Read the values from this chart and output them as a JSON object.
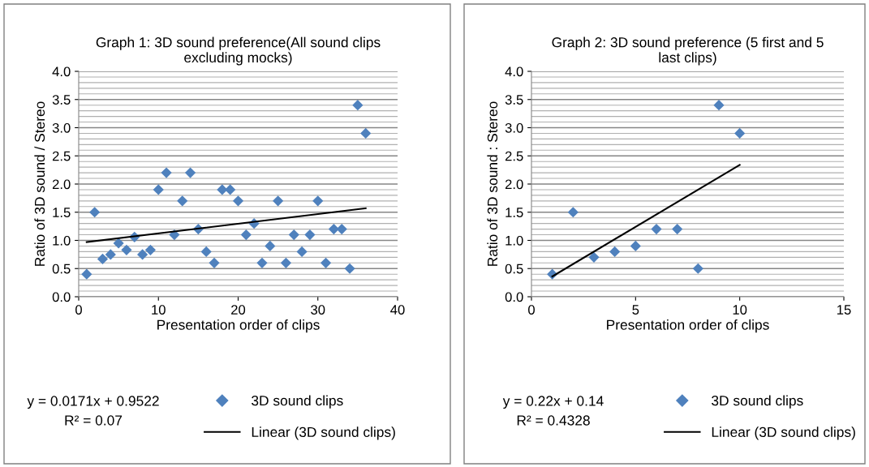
{
  "chart_data": [
    {
      "type": "scatter",
      "title": "Graph 1: 3D sound preference(All sound clips\nexcluding mocks)",
      "xlabel": "Presentation order of clips",
      "ylabel": "Ratio of 3D sound / Stereo",
      "x": [
        1,
        2,
        3,
        4,
        5,
        6,
        7,
        8,
        9,
        10,
        11,
        12,
        13,
        14,
        15,
        16,
        17,
        18,
        19,
        20,
        21,
        22,
        23,
        24,
        25,
        26,
        27,
        28,
        29,
        30,
        31,
        32,
        33,
        34,
        35,
        36
      ],
      "series": [
        {
          "name": "3D sound clips",
          "color": "#4f81bd",
          "marker": "diamond",
          "values": [
            0.4,
            1.5,
            0.67,
            0.75,
            0.95,
            0.83,
            1.06,
            0.75,
            0.83,
            1.9,
            2.2,
            1.1,
            1.7,
            2.2,
            1.2,
            0.8,
            0.6,
            1.9,
            1.9,
            1.7,
            1.1,
            1.3,
            0.6,
            0.9,
            1.7,
            0.6,
            1.1,
            0.8,
            1.1,
            1.7,
            0.6,
            1.2,
            1.2,
            0.5,
            3.4,
            2.9
          ]
        },
        {
          "name": "Linear (3D sound clips)",
          "type": "line",
          "color": "#000000",
          "line_style": "solid",
          "x": [
            1,
            36
          ],
          "values": [
            0.97,
            1.57
          ]
        }
      ],
      "xlim": [
        0,
        40
      ],
      "xticks": [
        0,
        10,
        20,
        30,
        40
      ],
      "ylim": [
        0.0,
        4.0
      ],
      "yticks": [
        {
          "value": 0,
          "label": "0.0"
        },
        0.5,
        {
          "value": 1,
          "label": "1.0"
        },
        1.5,
        {
          "value": 2,
          "label": "2.0"
        },
        2.5,
        {
          "value": 3,
          "label": "3.0"
        },
        3.5,
        {
          "value": 4,
          "label": "4.0"
        }
      ],
      "grid": "y",
      "legend": "bottom",
      "annotations": [
        "y = 0.0171x + 0.9522",
        "R² = 0.07"
      ]
    },
    {
      "type": "scatter",
      "title": "Graph 2: 3D sound preference (5 first and 5\nlast clips)",
      "xlabel": "Presentation order of clips",
      "ylabel": "Ratio of 3D sound : Stereo",
      "x": [
        1,
        2,
        3,
        4,
        5,
        6,
        7,
        8,
        9,
        10
      ],
      "series": [
        {
          "name": "3D sound clips",
          "color": "#4f81bd",
          "marker": "diamond",
          "values": [
            0.4,
            1.5,
            0.7,
            0.8,
            0.9,
            1.2,
            1.2,
            0.5,
            3.4,
            2.9
          ]
        },
        {
          "name": "Linear (3D sound clips)",
          "type": "line",
          "color": "#000000",
          "line_style": "solid",
          "x": [
            1,
            10
          ],
          "values": [
            0.36,
            2.34
          ]
        }
      ],
      "xlim": [
        0,
        15
      ],
      "xticks": [
        0,
        5,
        10,
        15
      ],
      "ylim": [
        0.0,
        4.0
      ],
      "yticks": [
        {
          "value": 0,
          "label": "0.0"
        },
        0.5,
        {
          "value": 1,
          "label": "1.0"
        },
        1.5,
        {
          "value": 2,
          "label": "2.0"
        },
        2.5,
        {
          "value": 3,
          "label": "3.0"
        },
        3.5,
        {
          "value": 4,
          "label": "4.0"
        }
      ],
      "grid": "y",
      "legend": "bottom",
      "annotations": [
        "y = 0.22x + 0.14",
        "R² = 0.4328"
      ]
    }
  ]
}
